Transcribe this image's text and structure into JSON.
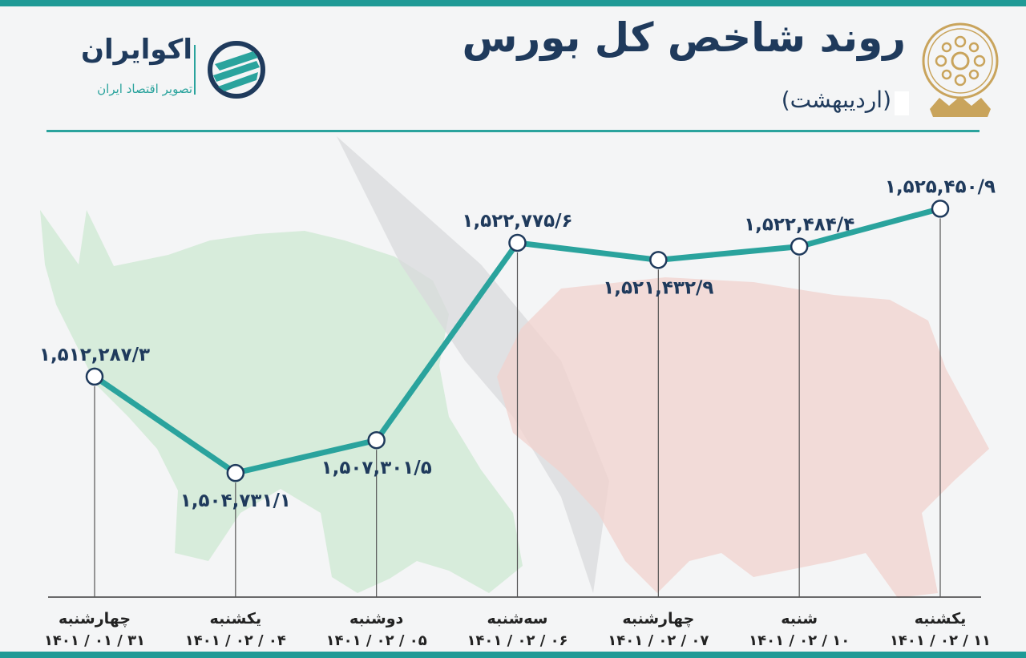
{
  "header": {
    "title": "روند شاخص کل بورس",
    "subtitle": "(اردیبهشت)",
    "brand_name": "اکوایران",
    "brand_tagline": "تصویر اقتصاد ایران"
  },
  "colors": {
    "accent": "#2aa39d",
    "navy": "#1f3a5c",
    "bull": "#c9e6cf",
    "bear": "#f3d3d0"
  },
  "chart_data": {
    "type": "line",
    "title": "روند شاخص کل بورس",
    "categories": [
      {
        "day": "چهارشنبه",
        "date": "۱۴۰۱ / ۰۱ / ۳۱"
      },
      {
        "day": "یکشنبه",
        "date": "۱۴۰۱ / ۰۲ / ۰۴"
      },
      {
        "day": "دوشنبه",
        "date": "۱۴۰۱ / ۰۲ / ۰۵"
      },
      {
        "day": "سه‌شنبه",
        "date": "۱۴۰۱ / ۰۲ / ۰۶"
      },
      {
        "day": "چهارشنبه",
        "date": "۱۴۰۱ / ۰۲ / ۰۷"
      },
      {
        "day": "شنبه",
        "date": "۱۴۰۱ / ۰۲ / ۱۰"
      },
      {
        "day": "یکشنبه",
        "date": "۱۴۰۱ / ۰۲ / ۱۱"
      }
    ],
    "values": [
      1512287.3,
      1504731.1,
      1507301.5,
      1522775.6,
      1521432.9,
      1522484.4,
      1525450.9
    ],
    "value_labels": [
      "۱,۵۱۲,۲۸۷/۳",
      "۱,۵۰۴,۷۳۱/۱",
      "۱,۵۰۷,۳۰۱/۵",
      "۱,۵۲۲,۷۷۵/۶",
      "۱,۵۲۱,۴۳۲/۹",
      "۱,۵۲۲,۴۸۴/۴",
      "۱,۵۲۵,۴۵۰/۹"
    ],
    "label_position": [
      "above",
      "below",
      "below",
      "above",
      "below",
      "above",
      "above"
    ],
    "ylim": [
      1495000,
      1530000
    ],
    "grid": false,
    "xlabel": "",
    "ylabel": ""
  }
}
